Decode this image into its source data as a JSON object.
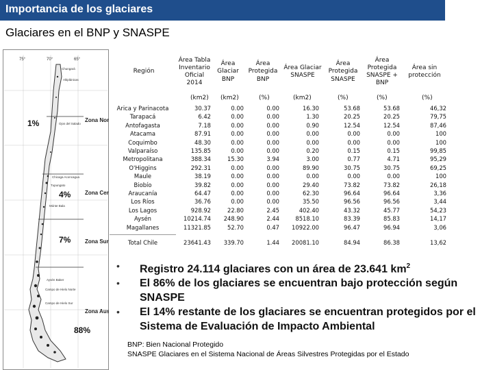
{
  "header": {
    "title": "Importancia de los glaciares"
  },
  "subtitle": "Glaciares en el BNP y SNASPE",
  "map": {
    "longitudes": [
      "75°",
      "70°",
      "65°"
    ],
    "zones": [
      {
        "name": "Zona Norte",
        "pct": "1%"
      },
      {
        "name": "Zona Centro",
        "pct": "4%"
      },
      {
        "name": "Zona Sur",
        "pct": "7%"
      },
      {
        "name": "Zona Austral",
        "pct": "88%"
      }
    ],
    "places": [
      "Altiplánicas",
      "Chungará",
      "Ojos del Salado",
      "Chicaga Aconcagua",
      "Tupungato",
      "Mónte Bala",
      "Aysén Baker",
      "Campo de Hielo Norte",
      "Campo de Hielo Sur"
    ]
  },
  "table": {
    "headers": [
      "Región",
      "Área Tabla Inventario Oficial 2014",
      "Área Glaciar BNP",
      "Área Protegida BNP",
      "Área Glaciar SNASPE",
      "Área Protegida SNASPE",
      "Área Protegida SNASPE + BNP",
      "Área sin protección"
    ],
    "units": [
      "(km2)",
      "(km2)",
      "(%)",
      "(km2)",
      "(%)",
      "(%)",
      "(%)"
    ],
    "rows": [
      {
        "region": "Arica y Parinacota",
        "c": [
          "30.37",
          "0.00",
          "0.00",
          "16.30",
          "53.68",
          "53.68",
          "46,32"
        ]
      },
      {
        "region": "Tarapacá",
        "c": [
          "6.42",
          "0.00",
          "0.00",
          "1.30",
          "20.25",
          "20.25",
          "79,75"
        ]
      },
      {
        "region": "Antofagasta",
        "c": [
          "7.18",
          "0.00",
          "0.00",
          "0.90",
          "12.54",
          "12.54",
          "87,46"
        ]
      },
      {
        "region": "Atacama",
        "c": [
          "87.91",
          "0.00",
          "0.00",
          "0.00",
          "0.00",
          "0.00",
          "100"
        ]
      },
      {
        "region": "Coquimbo",
        "c": [
          "48.30",
          "0.00",
          "0.00",
          "0.00",
          "0.00",
          "0.00",
          "100"
        ]
      },
      {
        "region": "Valparaíso",
        "c": [
          "135.85",
          "0.00",
          "0.00",
          "0.20",
          "0.15",
          "0.15",
          "99,85"
        ]
      },
      {
        "region": "Metropolitana",
        "c": [
          "388.34",
          "15.30",
          "3.94",
          "3.00",
          "0.77",
          "4.71",
          "95,29"
        ]
      },
      {
        "region": "O'Higgins",
        "c": [
          "292.31",
          "0.00",
          "0.00",
          "89.90",
          "30.75",
          "30.75",
          "69,25"
        ]
      },
      {
        "region": "Maule",
        "c": [
          "38.19",
          "0.00",
          "0.00",
          "0.00",
          "0.00",
          "0.00",
          "100"
        ]
      },
      {
        "region": "Biobío",
        "c": [
          "39.82",
          "0.00",
          "0.00",
          "29.40",
          "73.82",
          "73.82",
          "26,18"
        ]
      },
      {
        "region": "Araucanía",
        "c": [
          "64.47",
          "0.00",
          "0.00",
          "62.30",
          "96.64",
          "96.64",
          "3,36"
        ]
      },
      {
        "region": "Los Ríos",
        "c": [
          "36.76",
          "0.00",
          "0.00",
          "35.50",
          "96.56",
          "96.56",
          "3,44"
        ]
      },
      {
        "region": "Los Lagos",
        "c": [
          "928.92",
          "22.80",
          "2.45",
          "402.40",
          "43.32",
          "45.77",
          "54,23"
        ]
      },
      {
        "region": "Aysén",
        "c": [
          "10214.74",
          "248.90",
          "2.44",
          "8518.10",
          "83.39",
          "85.83",
          "14,17"
        ]
      },
      {
        "region": "Magallanes",
        "c": [
          "11321.85",
          "52.70",
          "0.47",
          "10922.00",
          "96.47",
          "96.94",
          "3,06"
        ]
      }
    ],
    "total": {
      "region": "Total Chile",
      "c": [
        "23641.43",
        "339.70",
        "1.44",
        "20081.10",
        "84.94",
        "86.38",
        "13,62"
      ]
    }
  },
  "bullets": [
    {
      "pre": "Registro 24.114 glaciares con un área de 23.641 km",
      "sup": "2"
    },
    {
      "pre": "El 86% de los glaciares se encuentran bajo protección según SNASPE",
      "sup": ""
    },
    {
      "pre": "El 14% restante de los glaciares se encuentran protegidos por el Sistema de Evaluación de Impacto Ambiental",
      "sup": ""
    }
  ],
  "bullet_glyph": "•",
  "footnotes": [
    "BNP: Bien Nacional Protegido",
    "SNASPE Glaciares en el Sistema Nacional de Áreas Silvestres Protegidas por el Estado"
  ]
}
